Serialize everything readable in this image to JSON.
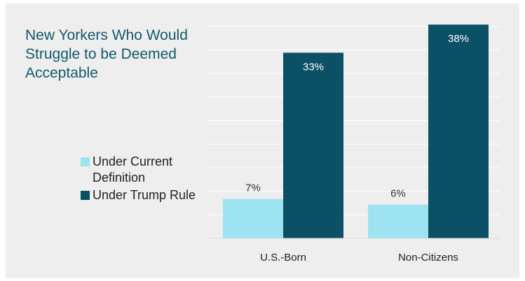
{
  "chart_data": {
    "type": "bar",
    "title": "New Yorkers Who Would Struggle to be Deemed Acceptable",
    "categories": [
      "U.S.-Born",
      "Non-Citizens"
    ],
    "series": [
      {
        "name": "Under Current Definition",
        "values": [
          7,
          6
        ],
        "labels": [
          "7%",
          "6%"
        ],
        "color": "#9ee3f2"
      },
      {
        "name": "Under Trump Rule",
        "values": [
          33,
          38
        ],
        "labels": [
          "33%",
          "38%"
        ],
        "color": "#0b5064"
      }
    ],
    "ylim": [
      0,
      42
    ],
    "grid": true,
    "legend": "left",
    "xlabel": "",
    "ylabel": ""
  },
  "colors": {
    "background": "#eeeeee",
    "title": "#13596a",
    "gridline": "#ffffff",
    "light_label": "#ffffff",
    "dark_label": "#333333"
  }
}
